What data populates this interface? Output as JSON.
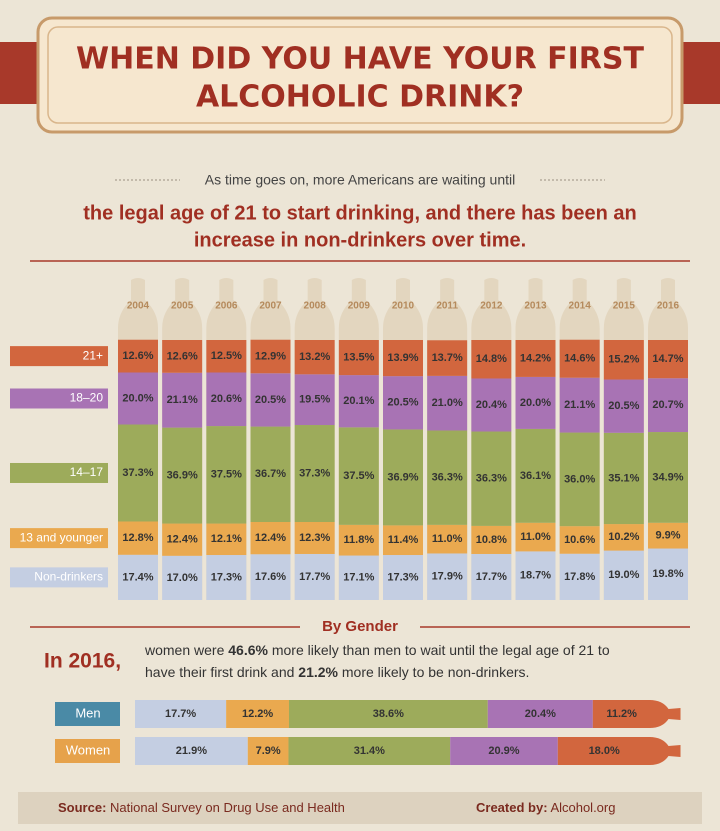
{
  "header": {
    "title_line1": "WHEN DID YOU HAVE YOUR FIRST",
    "title_line2": "ALCOHOLIC DRINK?"
  },
  "intro": {
    "lead": "As time goes on, more Americans are waiting until",
    "line1": "the legal age of 21 to start drinking, and there has been an",
    "line2": "increase in non-drinkers over time."
  },
  "chart_data": [
    {
      "type": "stacked-bar",
      "categories": [
        "2004",
        "2005",
        "2006",
        "2007",
        "2008",
        "2009",
        "2010",
        "2011",
        "2012",
        "2013",
        "2014",
        "2015",
        "2016"
      ],
      "series": [
        {
          "name": "21+",
          "color": "#d2663e",
          "values": [
            12.6,
            12.6,
            12.5,
            12.9,
            13.2,
            13.5,
            13.9,
            13.7,
            14.8,
            14.2,
            14.6,
            15.2,
            14.7
          ],
          "value_labels": [
            "12.6%",
            "12.6%",
            "12.5%",
            "12.9%",
            "13.2%",
            "13.5%",
            "13.9%",
            "13.7%",
            "14.8%",
            "14.2%",
            "14.6%",
            "15.2%",
            "14.7%"
          ]
        },
        {
          "name": "18–20",
          "color": "#a873b4",
          "values": [
            20.0,
            21.1,
            20.6,
            20.5,
            19.5,
            20.1,
            20.5,
            21.0,
            20.4,
            20.0,
            21.1,
            20.5,
            20.7
          ],
          "value_labels": [
            "20.0%",
            "21.1%",
            "20.6%",
            "20.5%",
            "19.5%",
            "20.1%",
            "20.5%",
            "21.0%",
            "20.4%",
            "20.0%",
            "21.1%",
            "20.5%",
            "20.7%"
          ]
        },
        {
          "name": "14–17",
          "color": "#9dab5b",
          "values": [
            37.3,
            36.9,
            37.5,
            36.7,
            37.3,
            37.5,
            36.9,
            36.3,
            36.3,
            36.1,
            36.0,
            35.1,
            34.9
          ],
          "value_labels": [
            "37.3%",
            "36.9%",
            "37.5%",
            "36.7%",
            "37.3%",
            "37.5%",
            "36.9%",
            "36.3%",
            "36.3%",
            "36.1%",
            "36.0%",
            "35.1%",
            "34.9%"
          ]
        },
        {
          "name": "13 and younger",
          "color": "#eaa94f",
          "values": [
            12.8,
            12.4,
            12.1,
            12.4,
            12.3,
            11.8,
            11.4,
            11.0,
            10.8,
            11.0,
            10.6,
            10.2,
            9.9
          ],
          "value_labels": [
            "12.8%",
            "12.4%",
            "12.1%",
            "12.4%",
            "12.3%",
            "11.8%",
            "11.4%",
            "11.0%",
            "10.8%",
            "11.0%",
            "10.6%",
            "10.2%",
            "9.9%"
          ]
        },
        {
          "name": "Non-drinkers",
          "color": "#c4cee2",
          "values": [
            17.4,
            17.0,
            17.3,
            17.6,
            17.7,
            17.1,
            17.3,
            17.9,
            17.7,
            18.7,
            17.8,
            19.0,
            19.8
          ],
          "value_labels": [
            "17.4%",
            "17.0%",
            "17.3%",
            "17.6%",
            "17.7%",
            "17.1%",
            "17.3%",
            "17.9%",
            "17.7%",
            "18.7%",
            "17.8%",
            "19.0%",
            "19.8%"
          ]
        }
      ]
    },
    {
      "type": "stacked-barh",
      "title": "By Gender",
      "categories": [
        "Men",
        "Women"
      ],
      "category_colors": [
        "#4a8aa6",
        "#e6a24b"
      ],
      "series": [
        {
          "color": "#c4cee2",
          "values": [
            17.7,
            21.9
          ],
          "value_labels": [
            "17.7%",
            "21.9%"
          ]
        },
        {
          "color": "#eaa94f",
          "values": [
            12.2,
            7.9
          ],
          "value_labels": [
            "12.2%",
            "7.9%"
          ]
        },
        {
          "color": "#9dab5b",
          "values": [
            38.6,
            31.4
          ],
          "value_labels": [
            "38.6%",
            "31.4%"
          ]
        },
        {
          "color": "#a873b4",
          "values": [
            20.4,
            20.9
          ],
          "value_labels": [
            "20.4%",
            "20.9%"
          ]
        },
        {
          "color": "#d2663e",
          "values": [
            11.2,
            18.0
          ],
          "value_labels": [
            "11.2%",
            "18.0%"
          ]
        }
      ]
    }
  ],
  "gender_note": {
    "lead": "In 2016,",
    "line1": [
      "women were",
      "46.6%",
      "more likely than men to wait until the legal age of 21 to"
    ],
    "line2": [
      "have their first drink and",
      "21.2%",
      "more likely to be non-drinkers."
    ]
  },
  "footer": {
    "source_label": "Source:",
    "source": "National Survey on Drug Use and Health",
    "credit_label": "Created by:",
    "credit": "Alcohol.org"
  }
}
